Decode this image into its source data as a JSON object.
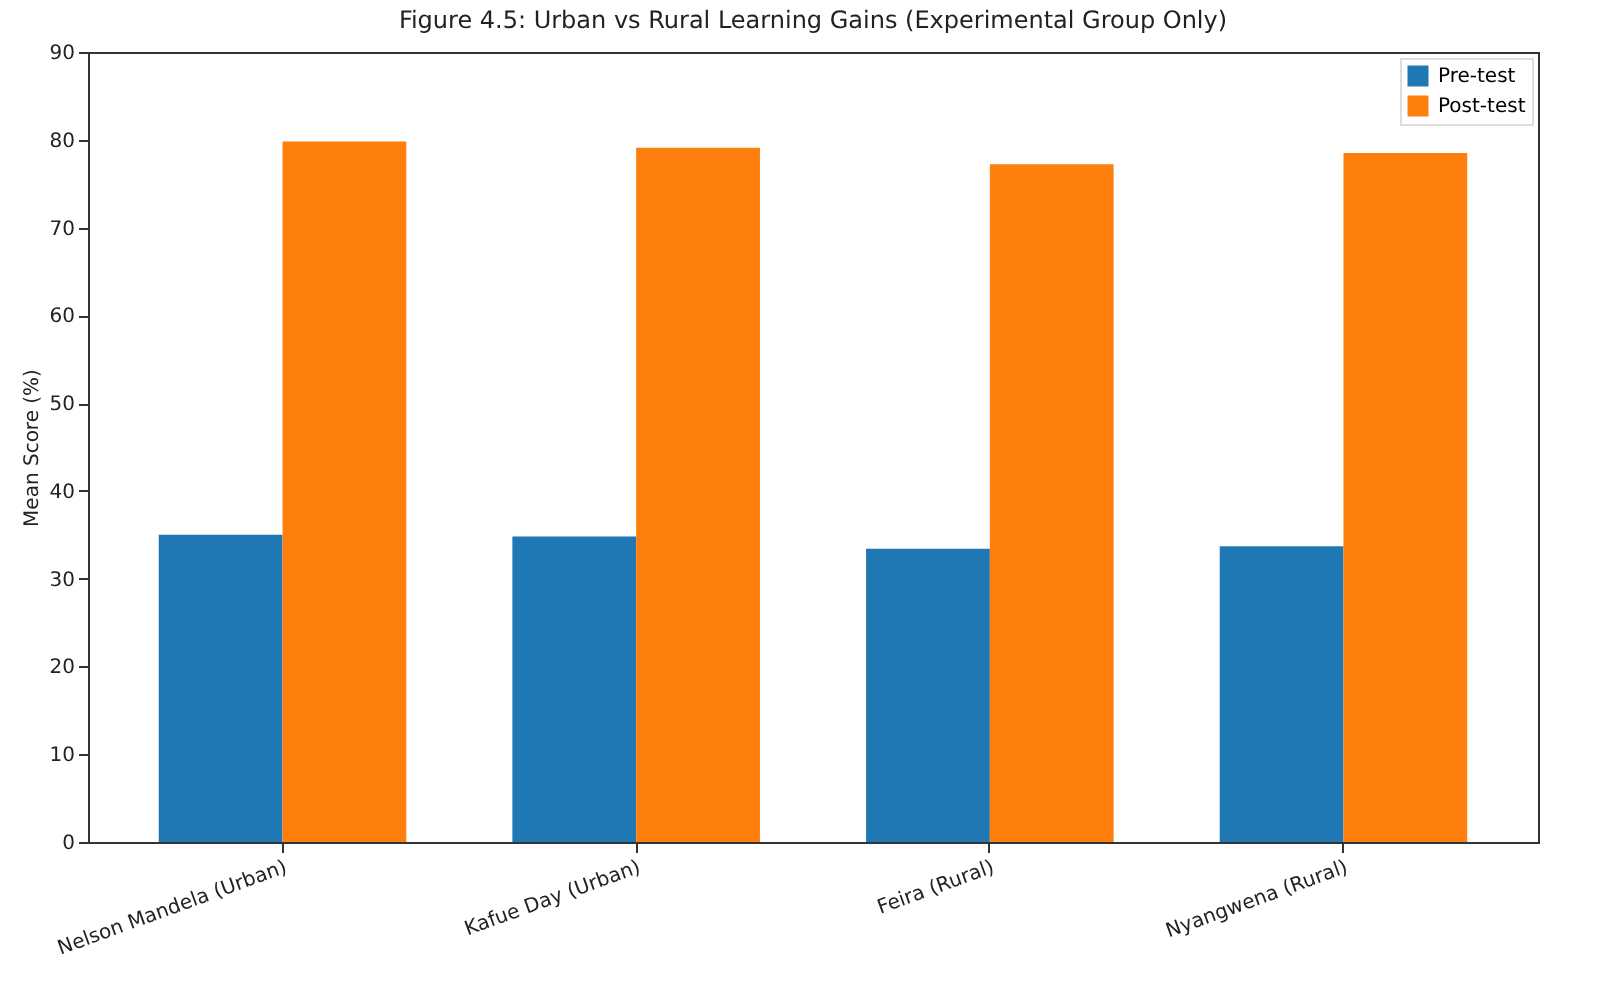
{
  "chart_data": {
    "type": "bar",
    "title": "Figure 4.5: Urban vs Rural Learning Gains (Experimental Group Only)",
    "ylabel": "Mean Score (%)",
    "categories": [
      "Nelson Mandela (Urban)",
      "Kafue Day (Urban)",
      "Feira (Rural)",
      "Nyangwena (Rural)"
    ],
    "series": [
      {
        "name": "Pre-test",
        "color": "#1f77b4",
        "values": [
          35.0,
          34.8,
          33.4,
          33.7
        ]
      },
      {
        "name": "Post-test",
        "color": "#ff7f0e",
        "values": [
          79.8,
          79.1,
          77.2,
          78.5
        ]
      }
    ],
    "ylim": [
      0,
      90
    ],
    "yticks": [
      0,
      10,
      20,
      30,
      40,
      50,
      60,
      70,
      80,
      90
    ],
    "grid": false,
    "legend": "top right"
  }
}
